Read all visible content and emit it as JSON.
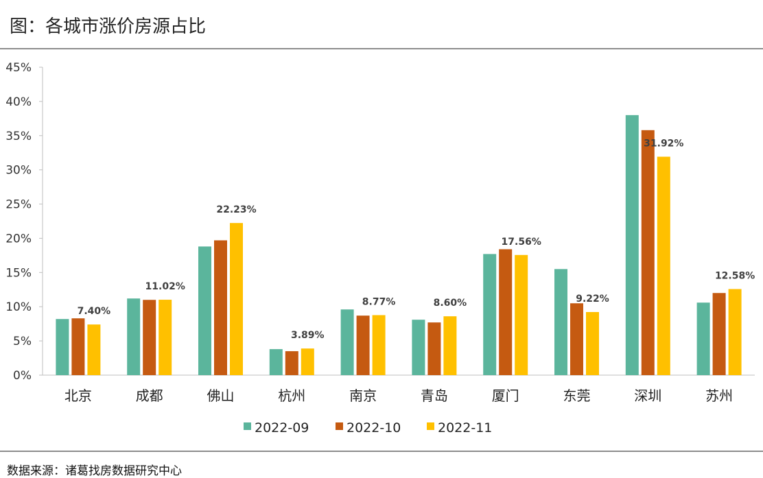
{
  "title": "图：各城市涨价房源占比",
  "source": "数据来源：诸葛找房数据研究中心",
  "chart_data": {
    "type": "bar",
    "categories": [
      "北京",
      "成都",
      "佛山",
      "杭州",
      "南京",
      "青岛",
      "厦门",
      "东莞",
      "深圳",
      "苏州"
    ],
    "series": [
      {
        "name": "2022-09",
        "color": "#5bb59c",
        "values": [
          8.2,
          11.2,
          18.8,
          3.8,
          9.6,
          8.1,
          17.7,
          15.5,
          38.0,
          10.6
        ]
      },
      {
        "name": "2022-10",
        "color": "#c55a11",
        "values": [
          8.3,
          11.0,
          19.7,
          3.5,
          8.7,
          7.7,
          18.4,
          10.5,
          35.8,
          12.0
        ]
      },
      {
        "name": "2022-11",
        "color": "#ffc000",
        "values": [
          7.4,
          11.02,
          22.23,
          3.89,
          8.77,
          8.6,
          17.56,
          9.22,
          31.92,
          12.58
        ]
      }
    ],
    "data_labels": [
      "7.40%",
      "11.02%",
      "22.23%",
      "3.89%",
      "8.77%",
      "8.60%",
      "17.56%",
      "9.22%",
      "31.92%",
      "12.58%"
    ],
    "y_ticks": [
      "0%",
      "5%",
      "10%",
      "15%",
      "20%",
      "25%",
      "30%",
      "35%",
      "40%",
      "45%"
    ],
    "ylim": [
      0,
      45
    ],
    "legend_position": "bottom",
    "grid": false
  }
}
